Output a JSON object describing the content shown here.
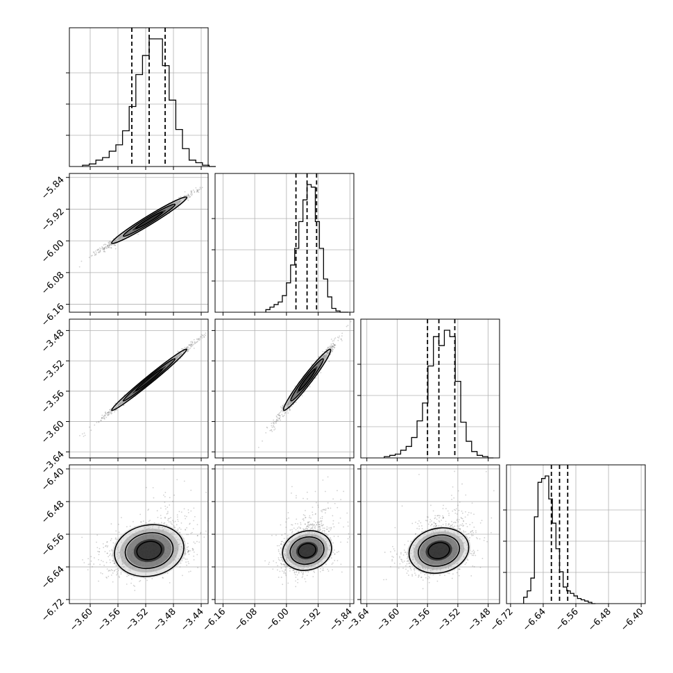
{
  "chart_data": {
    "type": "corner",
    "parameters": [
      {
        "range": [
          -3.63,
          -3.43
        ],
        "ticks": [
          -3.6,
          -3.56,
          -3.52,
          -3.48,
          -3.44
        ],
        "tick_labels": [
          "−3.60",
          "−3.56",
          "−3.52",
          "−3.48",
          "−3.44"
        ],
        "median": -3.515,
        "q16": -3.54,
        "q84": -3.492,
        "std": 0.024
      },
      {
        "range": [
          -6.18,
          -5.83
        ],
        "ticks": [
          -6.16,
          -6.08,
          -6.0,
          -5.92,
          -5.84
        ],
        "tick_labels": [
          "−6.16",
          "−6.08",
          "−6.00",
          "−5.92",
          "−5.84"
        ],
        "median": -5.948,
        "q16": -5.976,
        "q84": -5.924,
        "std": 0.026
      },
      {
        "range": [
          -3.648,
          -3.465
        ],
        "ticks": [
          -3.64,
          -3.6,
          -3.56,
          -3.52,
          -3.48
        ],
        "tick_labels": [
          "−3.64",
          "−3.60",
          "−3.56",
          "−3.52",
          "−3.48"
        ],
        "median": -3.545,
        "q16": -3.56,
        "q84": -3.524,
        "std": 0.018
      },
      {
        "range": [
          -6.73,
          -6.39
        ],
        "ticks": [
          -6.72,
          -6.64,
          -6.56,
          -6.48,
          -6.4
        ],
        "tick_labels": [
          "−6.72",
          "−6.64",
          "−6.56",
          "−6.48",
          "−6.40"
        ],
        "median": -6.6,
        "q16": -6.62,
        "q84": -6.58,
        "std": 0.022
      }
    ],
    "diagonal_histograms": [
      [
        0.01,
        0.02,
        0.05,
        0.07,
        0.12,
        0.17,
        0.28,
        0.47,
        0.72,
        0.87,
        1.0,
        1.0,
        0.79,
        0.52,
        0.29,
        0.14,
        0.05,
        0.03,
        0.01,
        0.0
      ],
      [
        0.02,
        0.04,
        0.06,
        0.08,
        0.13,
        0.23,
        0.37,
        0.5,
        0.71,
        0.88,
        1.0,
        0.98,
        0.71,
        0.5,
        0.26,
        0.12,
        0.03,
        0.01,
        0.0,
        0.0
      ],
      [
        0.01,
        0.02,
        0.03,
        0.06,
        0.09,
        0.16,
        0.29,
        0.43,
        0.72,
        0.95,
        0.88,
        1.0,
        0.95,
        0.6,
        0.28,
        0.13,
        0.05,
        0.02,
        0.01,
        0.0
      ],
      [
        0.05,
        0.1,
        0.2,
        0.68,
        0.95,
        0.98,
        1.0,
        0.82,
        0.63,
        0.43,
        0.25,
        0.13,
        0.1,
        0.08,
        0.06,
        0.04,
        0.03,
        0.02,
        0.01,
        0.0
      ]
    ],
    "correlations": {
      "1-0": 0.99,
      "2-0": 0.995,
      "2-1": 0.985,
      "3-0": 0.35,
      "3-1": 0.3,
      "3-2": 0.35
    },
    "grid": true
  }
}
